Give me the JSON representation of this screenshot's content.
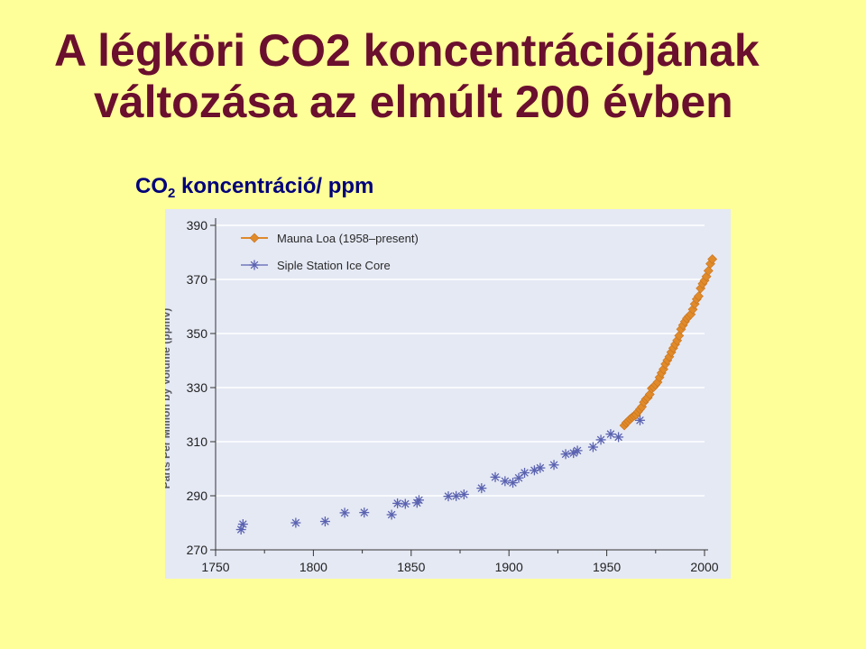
{
  "title_line1": "A légköri CO2 koncentrációjának",
  "title_line2": "változása az elmúlt 200 évben",
  "axis_caption": {
    "main": "CO",
    "sub": "2",
    "rest": " koncentráció/ ppm"
  },
  "colors": {
    "background": "#FFFF99",
    "title": "#6B0F2E",
    "mauna": "#E08A2A",
    "siple": "#5A62B0",
    "plot_bg": "#E5E9F4"
  },
  "chart_data": {
    "type": "scatter",
    "title": "",
    "xlabel": "",
    "ylabel": "Parts Per Million by Volume (ppmv)",
    "xlim": [
      1750,
      2000
    ],
    "ylim": [
      270,
      390
    ],
    "x_ticks": [
      "1750",
      "1800",
      "1850",
      "1900",
      "1950",
      "2000"
    ],
    "y_ticks": [
      "270",
      "290",
      "310",
      "330",
      "350",
      "370",
      "390"
    ],
    "legend": "top-left",
    "grid": "horizontal",
    "series": [
      {
        "name": "Mauna Loa (1958–present)",
        "marker": "diamond",
        "x": [
          1959,
          1960,
          1961,
          1962,
          1963,
          1964,
          1965,
          1966,
          1967,
          1968,
          1969,
          1970,
          1971,
          1972,
          1973,
          1974,
          1975,
          1976,
          1977,
          1978,
          1979,
          1980,
          1981,
          1982,
          1983,
          1984,
          1985,
          1986,
          1987,
          1988,
          1989,
          1990,
          1991,
          1992,
          1993,
          1994,
          1995,
          1996,
          1997,
          1998,
          1999,
          2000,
          2001,
          2002,
          2003,
          2004
        ],
        "y": [
          316,
          317,
          317.6,
          318.4,
          319,
          319.6,
          320,
          321.1,
          322,
          322.9,
          324.6,
          325.7,
          326.3,
          327.5,
          329.7,
          330.2,
          331.1,
          332,
          333.8,
          335.4,
          336.8,
          338.7,
          340.1,
          341.4,
          343.1,
          344.6,
          346,
          347.4,
          349.2,
          351.6,
          353.1,
          354.4,
          355.6,
          356.4,
          357.1,
          358.9,
          360.9,
          362.7,
          363.8,
          366.7,
          368.4,
          369.6,
          371.1,
          373.2,
          375.8,
          377.5
        ]
      },
      {
        "name": "Siple Station Ice Core",
        "marker": "asterisk",
        "x": [
          1763,
          1764,
          1791,
          1806,
          1816,
          1826,
          1840,
          1843,
          1847,
          1853,
          1854,
          1869,
          1873,
          1877,
          1886,
          1893,
          1898,
          1902,
          1905,
          1908,
          1913,
          1916,
          1923,
          1929,
          1933,
          1935,
          1943,
          1947,
          1952,
          1956,
          1967
        ],
        "y": [
          277.5,
          279.5,
          280,
          280.5,
          283.7,
          283.8,
          283,
          287.2,
          287,
          287.4,
          288.4,
          289.8,
          289.9,
          290.5,
          292.8,
          296.9,
          295.4,
          294.8,
          296.6,
          298.5,
          299.4,
          300.3,
          301.4,
          305.4,
          305.8,
          306.7,
          308,
          310.7,
          312.8,
          311.7,
          317.9
        ]
      }
    ]
  }
}
